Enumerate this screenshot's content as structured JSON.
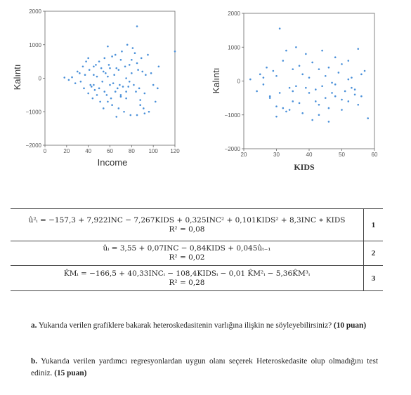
{
  "charts": [
    {
      "type": "scatter",
      "ylabel": "Kalıntı",
      "xlabel": "Income",
      "x_ticks": [
        "0",
        "20",
        "40",
        "60",
        "80",
        "100",
        "120"
      ],
      "y_ticks": [
        "2000",
        "1000",
        "0",
        "−1000",
        "−2000"
      ],
      "xlim": [
        0,
        120
      ],
      "ylim": [
        -2000,
        2000
      ]
    },
    {
      "type": "scatter",
      "ylabel": "Kalıntı",
      "xlabel": "KIDS",
      "x_ticks": [
        "20",
        "30",
        "40",
        "50",
        "60"
      ],
      "y_ticks": [
        "2000",
        "1000",
        "0",
        "−1000",
        "−2000"
      ],
      "xlim": [
        20,
        60
      ],
      "ylim": [
        -2000,
        2000
      ]
    }
  ],
  "chart_data": [
    {
      "type": "scatter",
      "xlabel": "Income",
      "ylabel": "Kalıntı",
      "xlim": [
        0,
        120
      ],
      "ylim": [
        -2000,
        2000
      ],
      "x": [
        18,
        22,
        25,
        28,
        30,
        32,
        33,
        35,
        36,
        37,
        38,
        40,
        40,
        41,
        42,
        43,
        44,
        45,
        45,
        46,
        47,
        48,
        48,
        50,
        50,
        51,
        52,
        53,
        54,
        55,
        55,
        56,
        57,
        58,
        58,
        59,
        60,
        60,
        61,
        62,
        63,
        64,
        65,
        65,
        66,
        67,
        68,
        68,
        69,
        70,
        70,
        71,
        72,
        73,
        74,
        75,
        75,
        76,
        77,
        78,
        78,
        79,
        80,
        80,
        81,
        82,
        83,
        84,
        85,
        85,
        86,
        87,
        88,
        89,
        90,
        91,
        92,
        93,
        95,
        96,
        98,
        100,
        102,
        104,
        105,
        120,
        85,
        62,
        75,
        58,
        45,
        70,
        88,
        92,
        66,
        54
      ],
      "y": [
        20,
        -50,
        30,
        -150,
        200,
        150,
        -100,
        350,
        -300,
        100,
        500,
        600,
        -450,
        250,
        -200,
        -250,
        -600,
        350,
        100,
        -350,
        400,
        50,
        -500,
        500,
        -300,
        -700,
        300,
        -100,
        200,
        600,
        -400,
        150,
        -500,
        50,
        -700,
        400,
        300,
        -200,
        -600,
        650,
        -150,
        100,
        700,
        -400,
        300,
        -300,
        -900,
        250,
        -200,
        550,
        -500,
        800,
        -250,
        -1000,
        350,
        0,
        -600,
        1000,
        -250,
        400,
        -100,
        -1100,
        550,
        150,
        900,
        -200,
        750,
        -400,
        450,
        -1100,
        250,
        -300,
        -800,
        600,
        200,
        -900,
        -450,
        100,
        700,
        -1000,
        150,
        -200,
        -700,
        -300,
        350,
        800,
        1550,
        -800,
        -400,
        950,
        -200,
        -550,
        -650,
        -1050,
        -1150,
        -900
      ]
    },
    {
      "type": "scatter",
      "xlabel": "KIDS",
      "ylabel": "Kalıntı",
      "xlim": [
        20,
        60
      ],
      "ylim": [
        -2000,
        2000
      ],
      "x": [
        22,
        24,
        25,
        26,
        27,
        28,
        29,
        30,
        30,
        31,
        32,
        32,
        33,
        34,
        35,
        35,
        36,
        36,
        37,
        38,
        38,
        39,
        40,
        40,
        41,
        41,
        42,
        43,
        43,
        44,
        45,
        45,
        46,
        46,
        47,
        48,
        48,
        49,
        50,
        50,
        51,
        52,
        52,
        53,
        54,
        55,
        55,
        56,
        57,
        58,
        28,
        33,
        31,
        37,
        43,
        46,
        50,
        54,
        26,
        35,
        39,
        44,
        48,
        52,
        56,
        30,
        42,
        47,
        53,
        34
      ],
      "y": [
        50,
        -300,
        200,
        -100,
        400,
        -450,
        300,
        -1050,
        150,
        -350,
        600,
        -800,
        900,
        -200,
        350,
        -600,
        1000,
        -150,
        450,
        -950,
        200,
        800,
        -350,
        100,
        -1150,
        550,
        -250,
        350,
        -700,
        900,
        -500,
        150,
        -1200,
        400,
        -50,
        700,
        -450,
        250,
        -850,
        500,
        -300,
        -600,
        600,
        100,
        -250,
        950,
        -700,
        -450,
        300,
        -1100,
        -500,
        -900,
        1550,
        -650,
        -1000,
        -800,
        -550,
        -400,
        100,
        -300,
        -200,
        -150,
        -100,
        50,
        200,
        -750,
        -600,
        -350,
        -200,
        -850
      ]
    }
  ],
  "equations": [
    {
      "main": "û²ᵢ = −157,3 + 7,922INC − 7,267KIDS + 0,325INC² + 0,101KIDS² + 8,3INC ∗ KIDS",
      "r2": "R² = 0,08",
      "num": "1"
    },
    {
      "main": "ûᵢ = 3,55 + 0,07INC − 0,84KIDS + 0,045ûₜ₋₁",
      "r2": "R² = 0,02",
      "num": "2"
    },
    {
      "main": "K̂Mᵢ = −166,5 + 40,33INCᵢ − 108,4KIDSᵢ − 0,01 K̂M²ᵢ − 5,36K̂M³ᵢ",
      "r2": "R² = 0,28",
      "num": "3"
    }
  ],
  "questions": {
    "a_label": "a.",
    "a_text": "Yukarıda verilen grafiklere bakarak heteroskedasitenin varlığına ilişkin ne söyleyebilirsiniz?",
    "a_points": "(10 puan)",
    "b_label": "b.",
    "b_text": "Yukarıda verilen yardımcı regresyonlardan uygun olanı seçerek Heteroskedasite olup olmadığını test ediniz.",
    "b_points": "(15 puan)"
  },
  "colors": {
    "point": "#4a90d9",
    "frame": "#666666"
  }
}
